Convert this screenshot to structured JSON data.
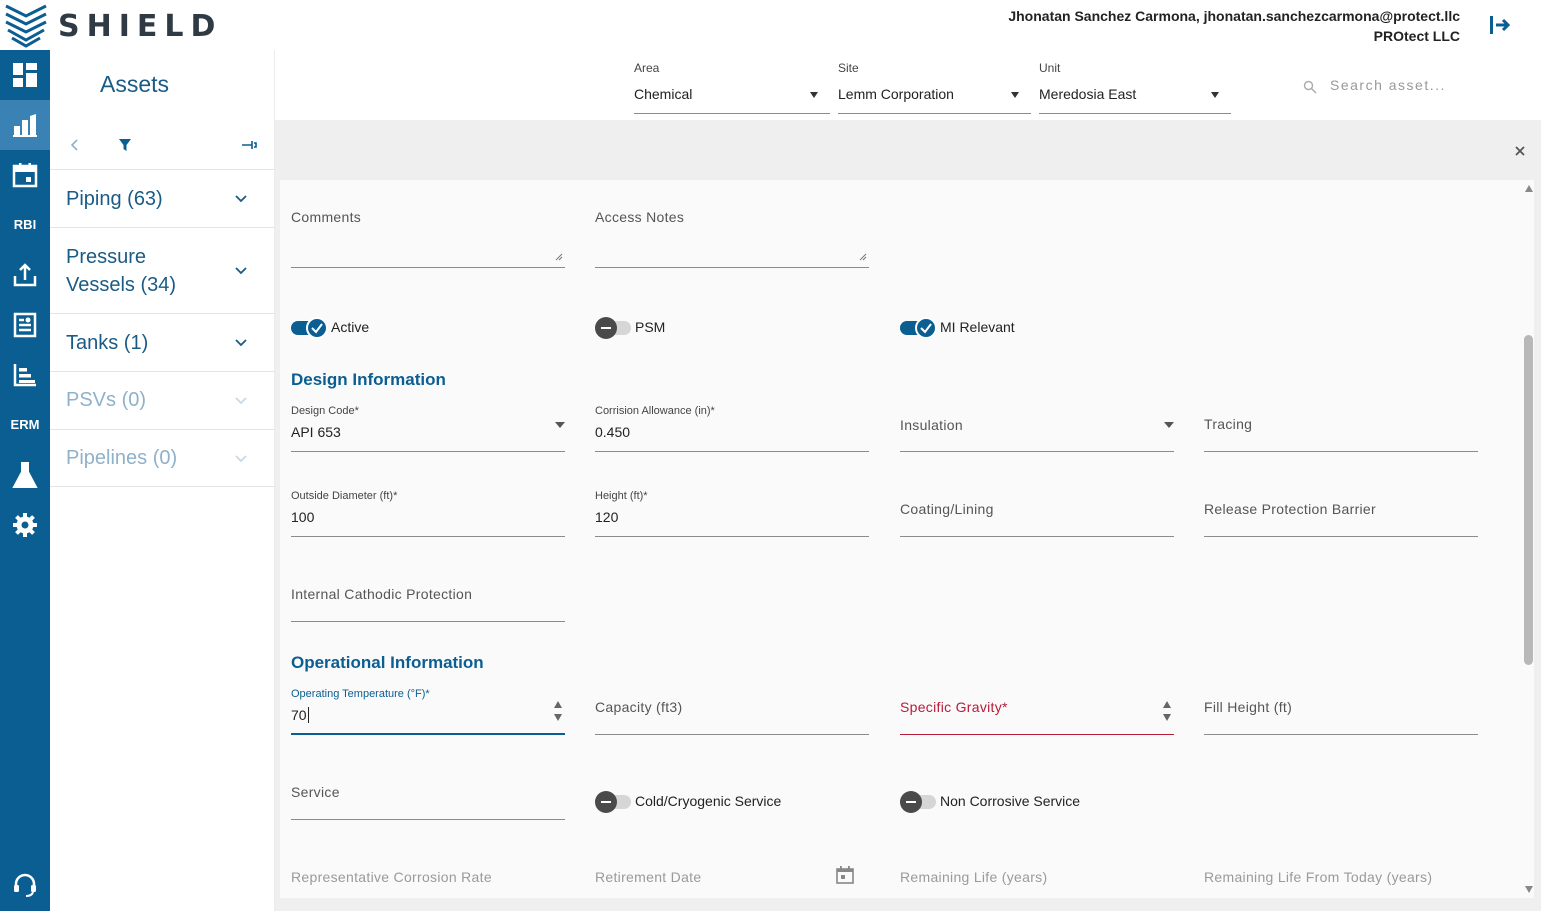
{
  "app": {
    "brand": "SHIELD",
    "user_line": "Jhonatan Sanchez Carmona, jhonatan.sanchezcarmona@protect.llc",
    "company": "PROtect LLC"
  },
  "sidebar": {
    "rbi_label": "RBI",
    "erm_label": "ERM"
  },
  "assets": {
    "title": "Assets",
    "groups": [
      {
        "label": "Piping (63)",
        "enabled": true
      },
      {
        "label": "Pressure Vessels (34)",
        "enabled": true
      },
      {
        "label": "Tanks (1)",
        "enabled": true
      },
      {
        "label": "PSVs (0)",
        "enabled": false
      },
      {
        "label": "Pipelines (0)",
        "enabled": false
      }
    ],
    "group_lines": {
      "g0": "Piping (63)",
      "g1a": "Pressure",
      "g1b": "Vessels (34)",
      "g2": "Tanks (1)",
      "g3": "PSVs (0)",
      "g4": "Pipelines (0)"
    }
  },
  "filters": {
    "area": {
      "label": "Area",
      "value": "Chemical"
    },
    "site": {
      "label": "Site",
      "value": "Lemm Corporation"
    },
    "unit": {
      "label": "Unit",
      "value": "Meredosia East"
    },
    "search_placeholder": "Search asset..."
  },
  "form": {
    "comments_label": "Comments",
    "access_notes_label": "Access Notes",
    "toggles": {
      "active": {
        "label": "Active",
        "on": true
      },
      "psm": {
        "label": "PSM",
        "on": false
      },
      "mi_relevant": {
        "label": "MI Relevant",
        "on": true
      },
      "cold_cryogenic": {
        "label": "Cold/Cryogenic Service",
        "on": false
      },
      "non_corrosive": {
        "label": "Non Corrosive Service",
        "on": false
      }
    },
    "design": {
      "title": "Design Information",
      "design_code": {
        "label": "Design Code*",
        "value": "API 653"
      },
      "corrosion_allowance": {
        "label": "Corrision Allowance (in)*",
        "value": "0.450"
      },
      "insulation": {
        "label": "Insulation"
      },
      "tracing": {
        "label": "Tracing"
      },
      "outside_diameter": {
        "label": "Outside Diameter (ft)*",
        "value": "100"
      },
      "height": {
        "label": "Height (ft)*",
        "value": "120"
      },
      "coating": {
        "label": "Coating/Lining"
      },
      "release_barrier": {
        "label": "Release Protection Barrier"
      },
      "cathodic": {
        "label": "Internal Cathodic Protection"
      }
    },
    "operational": {
      "title": "Operational Information",
      "operating_temp": {
        "label": "Operating Temperature (°F)*",
        "value": "70"
      },
      "capacity": {
        "label": "Capacity (ft3)"
      },
      "specific_gravity": {
        "label": "Specific Gravity*"
      },
      "fill_height": {
        "label": "Fill Height (ft)"
      },
      "service": {
        "label": "Service"
      },
      "corrosion_rate": {
        "label": "Representative Corrosion Rate"
      },
      "retirement_date": {
        "label": "Retirement Date"
      },
      "remaining_life": {
        "label": "Remaining Life (years)"
      },
      "remaining_life_today": {
        "label": "Remaining Life From Today (years)"
      }
    }
  },
  "colors": {
    "primary": "#0b5e92",
    "sidebar_active": "#3b82b4",
    "error": "#b71c3a",
    "heading": "#1a5b86"
  },
  "icons": {
    "sidebar": [
      "dashboard-icon",
      "assets-icon",
      "calendar-icon",
      "upload-icon",
      "report-icon",
      "chart-icon",
      "flask-icon",
      "gear-icon",
      "support-icon"
    ]
  }
}
